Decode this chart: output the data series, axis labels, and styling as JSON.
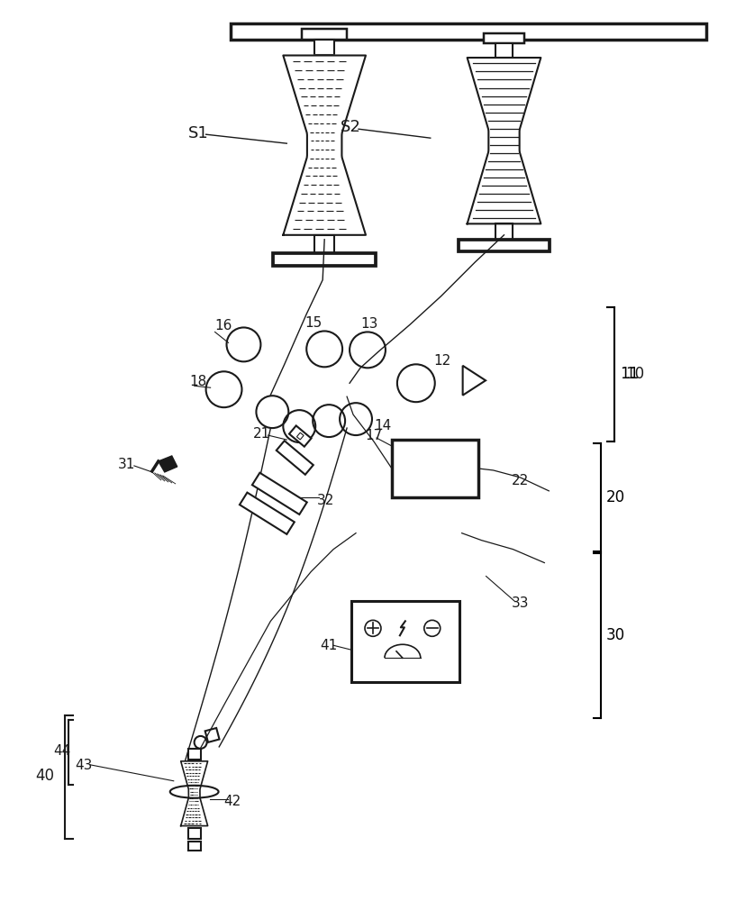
{
  "bg_color": "#ffffff",
  "line_color": "#1a1a1a",
  "figsize": [
    8.17,
    10.0
  ],
  "dpi": 100
}
